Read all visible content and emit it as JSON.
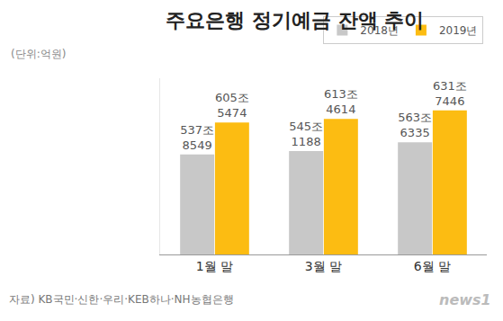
{
  "chart_data": {
    "type": "bar",
    "title": "주요은행 정기예금 잔액 추이",
    "subtitle": "(단위:억원)",
    "categories": [
      "1월 말",
      "3월 말",
      "6월 말"
    ],
    "series": [
      {
        "name": "2018년",
        "color": "#c8c8c8",
        "values": [
          5378549,
          5451188,
          5636335
        ],
        "value_labels": [
          "537조\n8549",
          "545조\n1188",
          "563조\n6335"
        ]
      },
      {
        "name": "2019년",
        "color": "#fcbc12",
        "values": [
          6055474,
          6134614,
          6317446
        ],
        "value_labels": [
          "605조\n5474",
          "613조\n4614",
          "631조\n7446"
        ]
      }
    ],
    "ylim": [
      3250000,
      7000000
    ],
    "yticks": [],
    "grid": false,
    "legend": "top right",
    "data_labels": true,
    "tick_labels": "x",
    "annotations": [
      {
        "text": "자료) KB국민·신한·우리·KEB하나·NH농협은행"
      },
      {
        "text": "news1"
      }
    ]
  }
}
